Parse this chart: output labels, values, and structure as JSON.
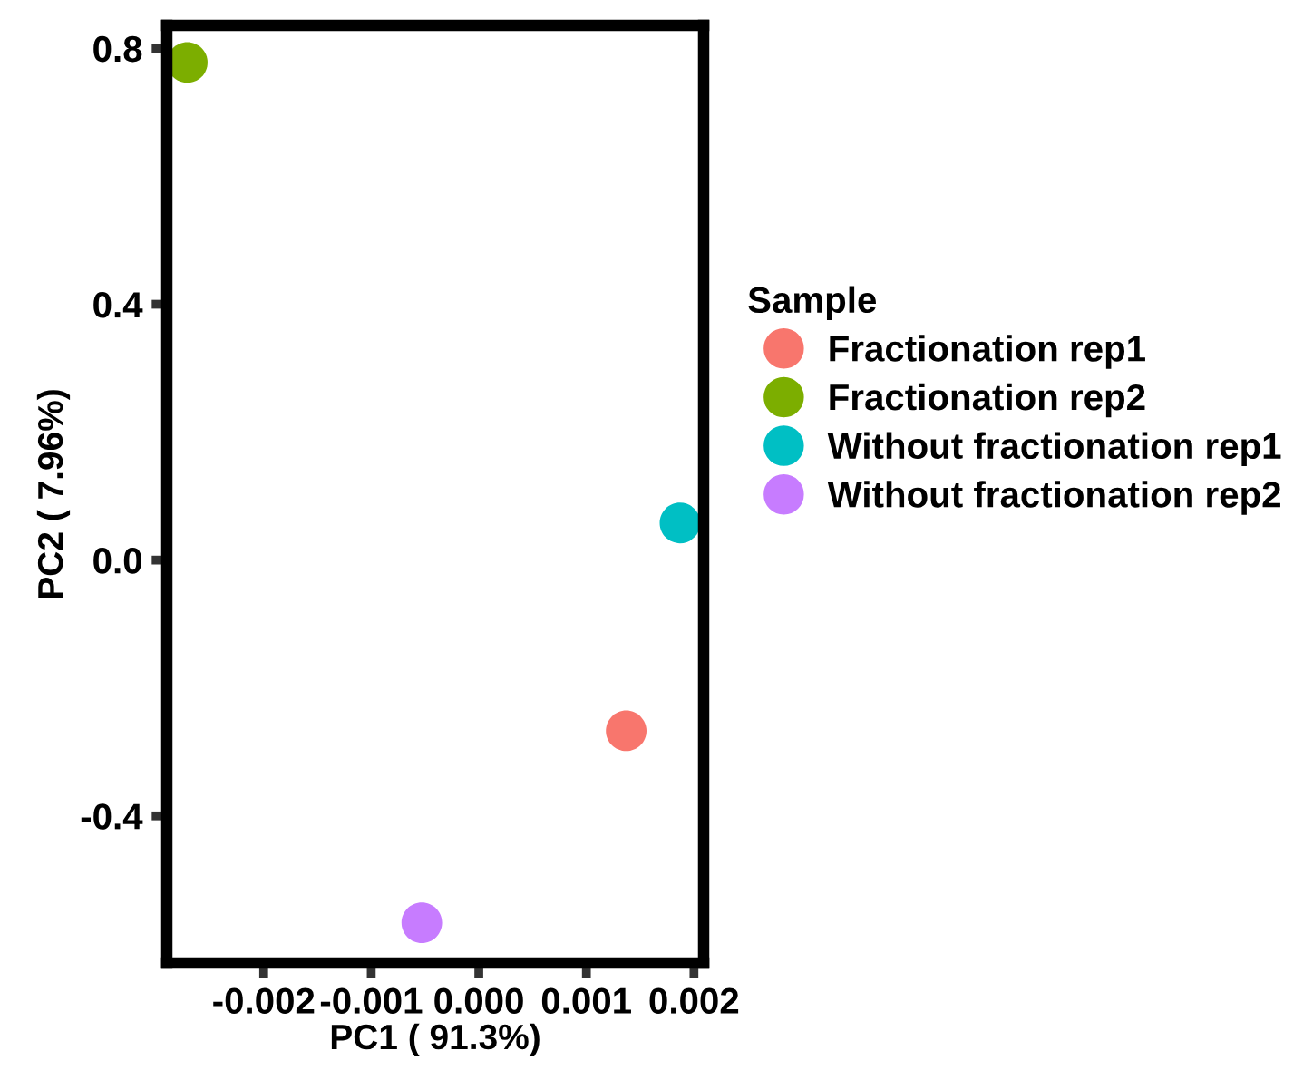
{
  "chart_data": {
    "type": "scatter",
    "xlabel": "PC1 ( 91.3%)",
    "ylabel": "PC2 ( 7.96%)",
    "legend_title": "Sample",
    "legend": "right",
    "marker": "circle",
    "grid": false,
    "xlim": [
      -0.0029,
      0.00209
    ],
    "ylim": [
      -0.63,
      0.836
    ],
    "xticks": [
      {
        "value": -0.002,
        "label": "-0.002"
      },
      {
        "value": -0.001,
        "label": "-0.001"
      },
      {
        "value": 0.0,
        "label": "0.000"
      },
      {
        "value": 0.001,
        "label": "0.001"
      },
      {
        "value": 0.002,
        "label": "0.002"
      }
    ],
    "yticks": [
      {
        "value": -0.4,
        "label": "-0.4"
      },
      {
        "value": 0.0,
        "label": "0.0"
      },
      {
        "value": 0.4,
        "label": "0.4"
      },
      {
        "value": 0.8,
        "label": "0.8"
      }
    ],
    "series": [
      {
        "name": "Fractionation rep1",
        "color": "#f8766d",
        "x": [
          0.00137
        ],
        "values": [
          -0.267
        ]
      },
      {
        "name": "Fractionation rep2",
        "color": "#7cae00",
        "x": [
          -0.00271
        ],
        "values": [
          0.778
        ]
      },
      {
        "name": "Without fractionation rep1",
        "color": "#00bfc4",
        "x": [
          0.00187
        ],
        "values": [
          0.058
        ]
      },
      {
        "name": "Without fractionation rep2",
        "color": "#c77cff",
        "x": [
          -0.00053
        ],
        "values": [
          -0.567
        ]
      }
    ]
  }
}
